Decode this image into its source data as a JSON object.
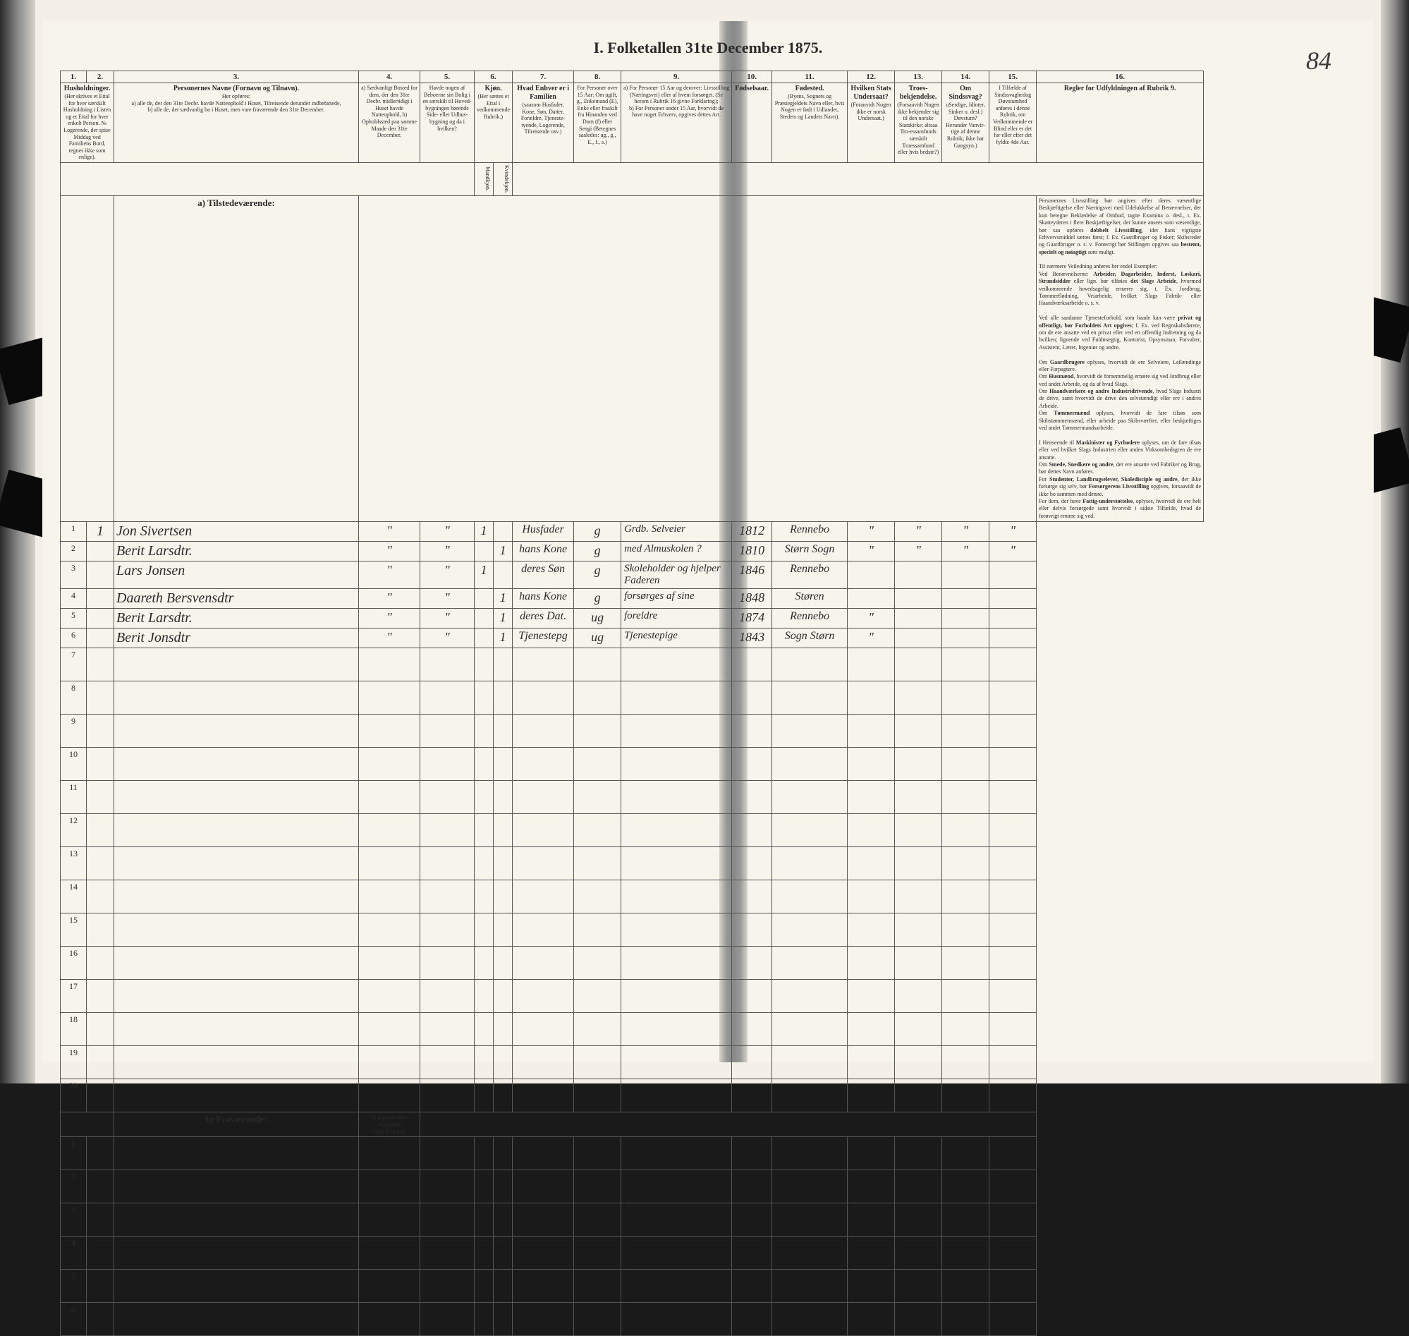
{
  "title": "I. Folketallen 31te December 1875.",
  "page_number": "84",
  "section_a": "a) Tilstedeværende:",
  "section_b": "b) Fraværende:",
  "col_numbers": [
    "1.",
    "2.",
    "3.",
    "4.",
    "5.",
    "6.",
    "7.",
    "8.",
    "9.",
    "10.",
    "11.",
    "12.",
    "13.",
    "14.",
    "15.",
    "16."
  ],
  "headers": {
    "c1": "Husholdninger.",
    "c1_sub": "(Her skrives et Ettal for hver særskilt Husholdning i Listen og et Ettal for hver enkelt Person. № Logerende, der spise Middag ved Familiens Bord, regnes ikke som enlige).",
    "c3": "Personernes Navne (Fornavn og Tilnavn).",
    "c3_sub_a": "a) alle de, der den 31te Decbr. havde Natteophold i Huset, Tilreisende derunder indbefattede,",
    "c3_sub_b": "b) alle de, der sædvanlig bo i Huset, men vare fraværende den 31te December.",
    "c4": "a) Sædvanligt Bosted for dem, der den 31te Decbr. midlertidigt i Huset havde Natteophold, b) Opholdssted paa samme Maade den 31te December.",
    "c5": "Havde nogen af Beboerne sin Bolig i en særskilt til Hoved-bygningen hørende Side- eller Udhus-bygning og da i hvilken?",
    "c6": "Kjøn.",
    "c6_sub": "(Her sættes et Ettal i vedkommende Rubrik.)",
    "c6_m": "Mandkjøn.",
    "c6_k": "Kvindekjøn.",
    "c7": "Hvad Enhver er i Familien",
    "c7_sub": "(saasom Husfader, Kone, Søn, Datter, Forældre, Tjeneste-tyende, Logerende, Tilreisende osv.)",
    "c8": "For Personer over 15 Aar: Om ugift, g., Enkemand (E), Enke eller fraskilt fra Hinanden ved Dom (f) eller Sengi (Betegnes saaledes: ug., g., E., f., s.)",
    "c9_a": "a) For Personer 15 Aar og derover: Livsstilling (Næringsvei) eller af hvem forsørget. (Se herom i Rubrik 16 givne Forklaring);",
    "c9_b": "b) For Personer under 15 Aar, hvorvidt de have noget Erhverv, opgives dettes Art.",
    "c10": "Fødselsaar.",
    "c11": "Fødested.",
    "c11_sub": "(Byens, Sognets og Præstegjeldets Navn eller, hvis Nogen er født i Udlandet, Stedets og Landets Navn).",
    "c12": "Hvilken Stats Undersaat?",
    "c12_sub": "(Foranvidt Nogen ikke er norsk Undersaat.)",
    "c13": "Troes-bekjendelse.",
    "c13_sub": "(Forsaavidt Nogen ikke bekjender sig til den norske Statskirke; altsaa Tro-essamfunds særskilt Troessamfund eller hvis bedste?)",
    "c14": "Om Sindssvag?",
    "c14_sub": "uSerdige, Idioter, Sinker o. desl.) Døvstum? Herunder Vanvir-tige af denne Rubrik; ikke har Gangsyn.)",
    "c15": "I Tilfælde af Sindssvaghedog Døvstumhed anføres i denne Rubrik, om Vedkommende er Blind eller er det for eller efter det fyldte 4de Aar.",
    "c16": "Regler for Udfyldningen af Rubrik 9.",
    "c4b": "b) Kjendt eller formodet Opholdssted."
  },
  "rows": [
    {
      "num": "1",
      "hh": "1",
      "name": "Jon Sivertsen",
      "c4": "\"",
      "c5": "\"",
      "m": "1",
      "k": "",
      "fam": "Husfader",
      "civ": "g",
      "occ": "Grdb. Selveier",
      "year": "1812",
      "place": "Rennebo",
      "c12": "\"",
      "c13": "\"",
      "c14": "\"",
      "c15": "\""
    },
    {
      "num": "2",
      "hh": "",
      "name": "Berit Larsdtr.",
      "c4": "\"",
      "c5": "\"",
      "m": "",
      "k": "1",
      "fam": "hans Kone",
      "civ": "g",
      "occ": "med Almuskolen ?",
      "year": "1810",
      "place": "Størn Sogn",
      "c12": "\"",
      "c13": "\"",
      "c14": "\"",
      "c15": "\""
    },
    {
      "num": "3",
      "hh": "",
      "name": "Lars Jonsen",
      "c4": "\"",
      "c5": "\"",
      "m": "1",
      "k": "",
      "fam": "deres Søn",
      "civ": "g",
      "occ": "Skoleholder og hjelper Faderen",
      "year": "1846",
      "place": "Rennebo",
      "c12": "",
      "c13": "",
      "c14": "",
      "c15": ""
    },
    {
      "num": "4",
      "hh": "",
      "name": "Daareth Bersvensdtr",
      "c4": "\"",
      "c5": "\"",
      "m": "",
      "k": "1",
      "fam": "hans Kone",
      "civ": "g",
      "occ": "forsørges af sine",
      "year": "1848",
      "place": "Støren",
      "c12": "",
      "c13": "",
      "c14": "",
      "c15": ""
    },
    {
      "num": "5",
      "hh": "",
      "name": "Berit Larsdtr.",
      "c4": "\"",
      "c5": "\"",
      "m": "",
      "k": "1",
      "fam": "deres Dat.",
      "civ": "ug",
      "occ": "foreldre",
      "year": "1874",
      "place": "Rennebo",
      "c12": "\"",
      "c13": "",
      "c14": "",
      "c15": ""
    },
    {
      "num": "6",
      "hh": "",
      "name": "Berit Jonsdtr",
      "c4": "\"",
      "c5": "\"",
      "m": "",
      "k": "1",
      "fam": "Tjenestepg",
      "civ": "ug",
      "occ": "Tjenestepige",
      "year": "1843",
      "place": "Sogn Størn",
      "c12": "\"",
      "c13": "",
      "c14": "",
      "c15": ""
    }
  ],
  "empty_row_nums_a": [
    "7",
    "8",
    "9",
    "10",
    "11",
    "12",
    "13",
    "14",
    "15",
    "16",
    "17",
    "18",
    "19",
    "20"
  ],
  "empty_row_nums_b": [
    "1",
    "2",
    "3",
    "4",
    "5",
    "6"
  ],
  "instructions": "Personernes Livsstilling bør angives efter deres væsentlige Beskjæftigelse eller Næringsvei med Udelukkelse af Benævnelser, der kun betegne Beklædelse af Ombud, tagne Examina o. desl., t. Ex. Skatteyderen i flere Beskjæftigelser, der kunne ansees som væsentlige, bør saa opføres <b>dobbelt Livsstilling</b>, idet hans vigtigste Erhvervsmiddel sættes først; f. Ex. Gaardbruger og Fisker; Skibsreder og Gaardbruger o. s. v. Forøvrigt bør Stillingen opgives saa <b>bestemt, specielt og nøiagtigt</b> som muligt.<br><br>Til nærmere Veiledning anføres her endel Exempler:<br>Ved Benævnelserne: <b>Arbeider, Dagarbeider, Inderst, Løskari, Strandsidder</b> eller lign. bør tilføies <b>det Slags Arbeide</b>, hvormed vedkommende hovedsagelig ernærer sig, t. Ex. Jordbrug, Tømmerflødning, Veiarbeide, hvilket Slags Fabrik- eller Haandværksarbeide o. s. v.<br><br>Ved alle saadanne Tjenesteforhold, som baade kan være <b>privat og offentligt, bør Forholdets Art opgives</b>; f. Ex. ved Regnskabsførere, om de ere ansatte ved en privat eller ved en offentlig Indretning og da hvilken; lignende ved Fuldmægtig, Kontorist, Opsynsman, Forvalter, Assistent, Lærer, Ingeniør og andre.<br><br>Om <b>Gaardbrugere</b> oplyses, hvorvidt de ere Selveiere, Leilændinge eller Forpagtere.<br>Om <b>Husmænd</b>, hvorvidt de fornemmelig ernære sig ved Jordbrug eller ved andet Arbeide, og da af hvad Slags.<br>Om <b>Haandværkere og andre Industridrivende</b>, hvad Slags Industri de drive, samt hvorvidt de drive den selvstændigt eller ere i andres Arbeide.<br>Om <b>Tømmermænd</b> oplyses, hvorvidt de fare tilsøs som Skibstømmermænd, eller arbeide paa Skibsværfter, eller beskjæftiges ved andet Tømmermandsarbeide.<br><br>I Henseende til <b>Maskinister og Fyrbødere</b> oplyses, om de fare tilsøs eller ved hvilket Slags Industrien eller anden Virksomhedsgren de ere ansatte.<br>Om <b>Smede, Snedkere og andre</b>, der ere ansatte ved Fabriker og Brug, bør dettes Navn anføres.<br>For <b>Studenter, Landbrugselever, Skoledisciple og andre</b>, der ikke forsørge sig selv, bør <b>Forsørgerens Livsstilling</b> opgives, forsaavidt de ikke bo sammen med denne.<br>For dem, der have <b>Fattig-understøttelse</b>, oplyses, hvorvidt de ere helt eller delvis forsørgede samt hvorvidt i sidste Tilfælde, hvad de forøvrigt ernære sig ved."
}
